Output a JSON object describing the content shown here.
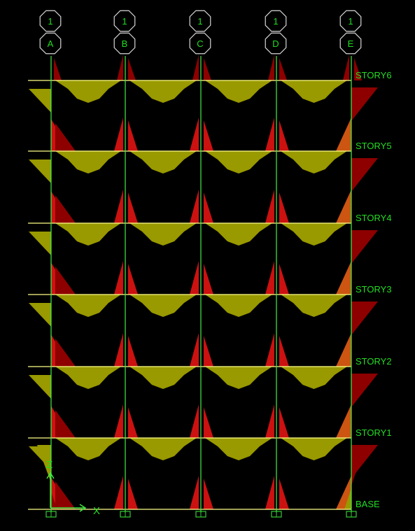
{
  "bubble_top_label": "1",
  "gridlines": [
    "A",
    "B",
    "C",
    "D",
    "E"
  ],
  "stories": [
    "STORY6",
    "STORY5",
    "STORY4",
    "STORY3",
    "STORY2",
    "STORY1",
    "BASE"
  ],
  "axis": {
    "z": "Z",
    "x": "X"
  },
  "colors": {
    "background": "#000000",
    "column": "#44ee44",
    "beam": "#ffff88",
    "beam_moment": "#999900",
    "column_moment_dark": "#8e0000",
    "column_moment_red": "#cc1111",
    "column_moment_orange": "#cc5511",
    "text": "#22dd22",
    "bubble_stroke": "#d8d8d8",
    "support": "#33cc33"
  }
}
